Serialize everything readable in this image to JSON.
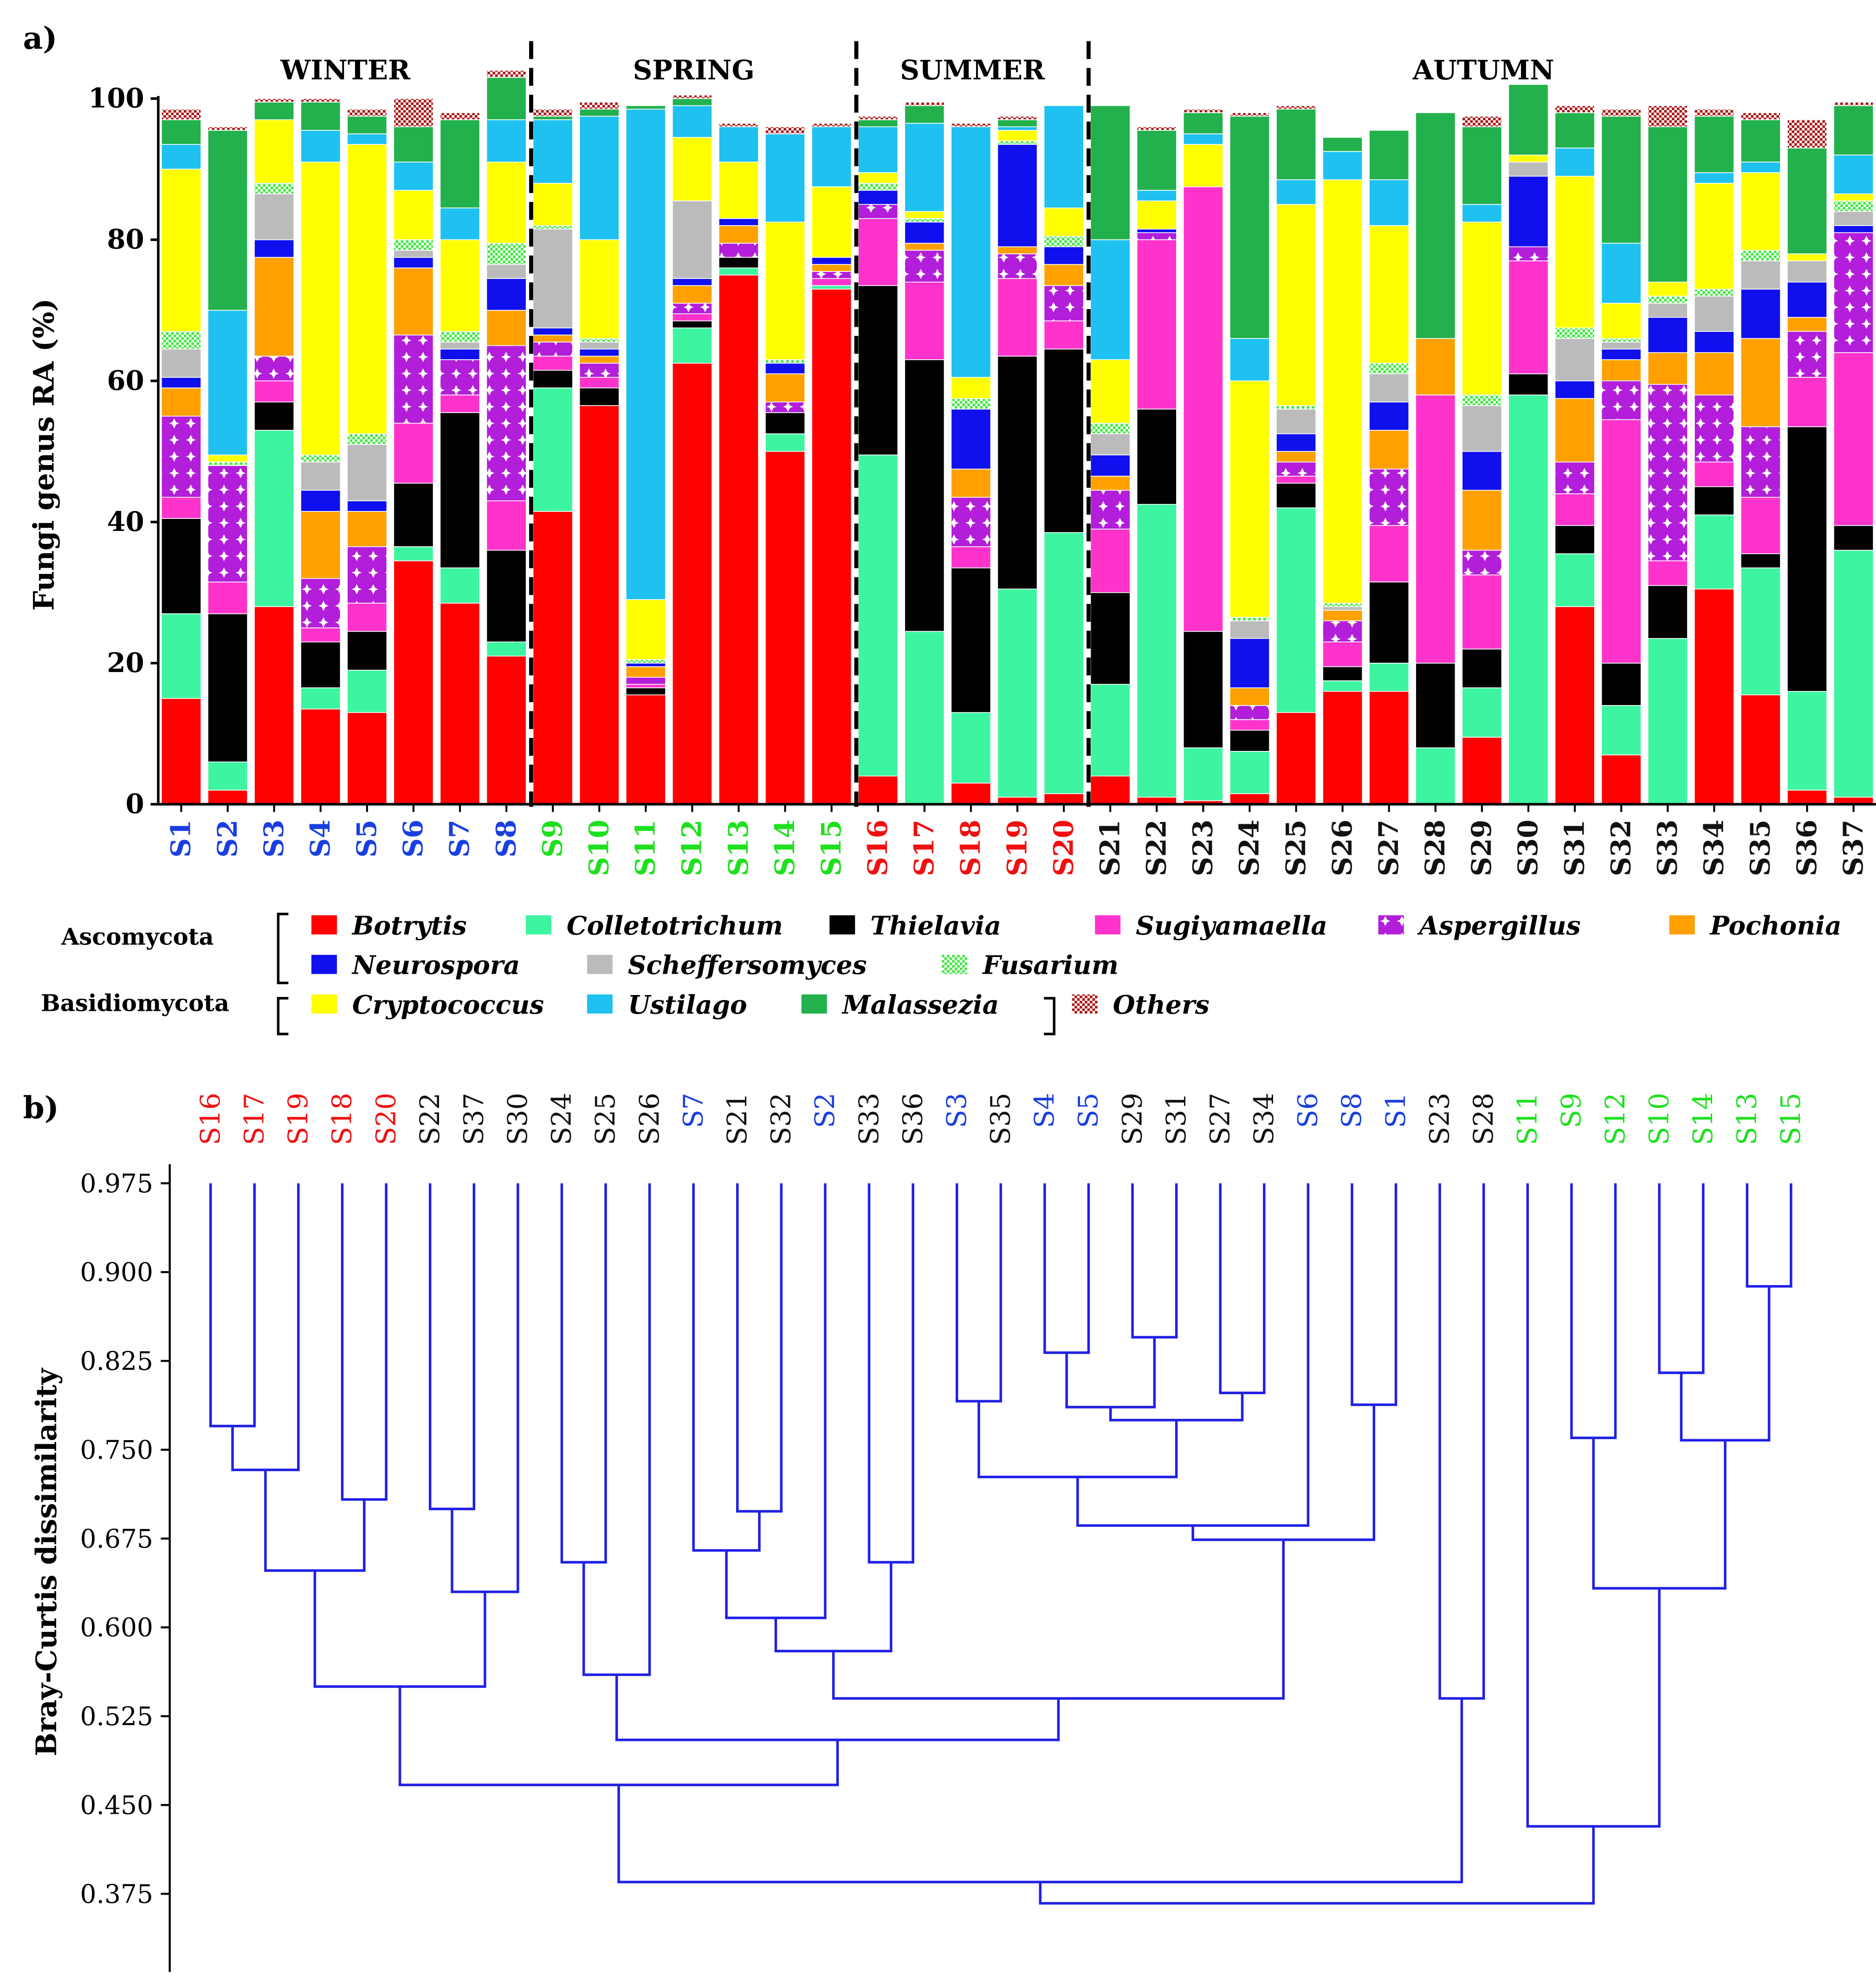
{
  "panel_a": {
    "label": "a)",
    "seasons": [
      {
        "name": "WINTER",
        "color": "#1a3fe0",
        "samples": [
          "S1",
          "S2",
          "S3",
          "S4",
          "S5",
          "S6",
          "S7",
          "S8"
        ]
      },
      {
        "name": "SPRING",
        "color": "#1ee01e",
        "samples": [
          "S9",
          "S10",
          "S11",
          "S12",
          "S13",
          "S14",
          "S15"
        ]
      },
      {
        "name": "SUMMER",
        "color": "#f01010",
        "samples": [
          "S16",
          "S17",
          "S18",
          "S19",
          "S20"
        ]
      },
      {
        "name": "AUTUMN",
        "color": "#111111",
        "samples": [
          "S21",
          "S22",
          "S23",
          "S24",
          "S25",
          "S26",
          "S27",
          "S28",
          "S29",
          "S30",
          "S31",
          "S32",
          "S33",
          "S34",
          "S35",
          "S36",
          "S37"
        ]
      }
    ],
    "legend_groups": {
      "ascomycota": "Ascomycota",
      "basidiomycota": "Basidiomycota"
    }
  },
  "panel_b": {
    "label": "b)"
  },
  "chart_data": [
    {
      "type": "bar",
      "stacked": true,
      "title": "",
      "ylabel": "Fungi genus RA (%)",
      "xlabel": "",
      "ylim": [
        0,
        100
      ],
      "yticks": [
        0,
        20,
        40,
        60,
        80,
        100
      ],
      "categories": [
        "S1",
        "S2",
        "S3",
        "S4",
        "S5",
        "S6",
        "S7",
        "S8",
        "S9",
        "S10",
        "S11",
        "S12",
        "S13",
        "S14",
        "S15",
        "S16",
        "S17",
        "S18",
        "S19",
        "S20",
        "S21",
        "S22",
        "S23",
        "S24",
        "S25",
        "S26",
        "S27",
        "S28",
        "S29",
        "S30",
        "S31",
        "S32",
        "S33",
        "S34",
        "S35",
        "S36",
        "S37"
      ],
      "series": [
        {
          "name": "Botrytis",
          "phylum": "Ascomycota",
          "color": "#ff0000",
          "pattern": "solid",
          "values": [
            15,
            2,
            28,
            13.5,
            13,
            34.5,
            28.5,
            21,
            41.5,
            56.5,
            15.5,
            62.5,
            75,
            50,
            73,
            4,
            0,
            3,
            1,
            1.5,
            4,
            1,
            0.5,
            1.5,
            13,
            16,
            16,
            0,
            9.5,
            0,
            28,
            7,
            0,
            30.5,
            15.5,
            2,
            1
          ]
        },
        {
          "name": "Colletotrichum",
          "phylum": "Ascomycota",
          "color": "#3df5a0",
          "pattern": "solid",
          "values": [
            12,
            4,
            25,
            3,
            6,
            2,
            5,
            2,
            17.5,
            0,
            0,
            5,
            1,
            2.5,
            0.5,
            45.5,
            24.5,
            10,
            29.5,
            37,
            13,
            41.5,
            7.5,
            6,
            29,
            1.5,
            4,
            8,
            7,
            58,
            7.5,
            7,
            23.5,
            10.5,
            18,
            14,
            35
          ]
        },
        {
          "name": "Thielavia",
          "phylum": "Ascomycota",
          "color": "#000000",
          "pattern": "solid",
          "values": [
            13.5,
            21,
            4,
            6.5,
            5.5,
            9,
            22,
            13,
            2.5,
            2.5,
            1,
            1,
            1.5,
            3,
            0,
            24,
            38.5,
            20.5,
            33,
            26,
            13,
            13.5,
            16.5,
            3,
            3.5,
            2,
            11.5,
            12,
            5.5,
            3,
            4,
            6,
            7.5,
            4,
            2,
            37.5,
            3.5
          ]
        },
        {
          "name": "Sugiyamaella",
          "phylum": "Ascomycota",
          "color": "#ff33cc",
          "pattern": "solid",
          "values": [
            3,
            4.5,
            3,
            2,
            4,
            8.5,
            2.5,
            7,
            2,
            1.5,
            0.5,
            1,
            0,
            0,
            1,
            9.5,
            11,
            3,
            11,
            4,
            9,
            24,
            63,
            1.5,
            1,
            3.5,
            8,
            38,
            10.5,
            16,
            4.5,
            34.5,
            3.5,
            3.5,
            8,
            7,
            24.5
          ]
        },
        {
          "name": "Aspergillus",
          "phylum": "Ascomycota",
          "color": "#b21ed9",
          "pattern": "cross",
          "values": [
            11.5,
            16.5,
            3.5,
            7,
            8,
            12.5,
            5,
            22,
            2,
            2,
            1,
            1.5,
            2,
            1.5,
            1,
            2,
            4.5,
            7,
            3.5,
            5,
            5.5,
            1,
            0,
            2,
            2,
            3,
            8,
            0,
            3.5,
            2,
            4.5,
            5.5,
            25,
            9.5,
            10,
            6.5,
            17
          ]
        },
        {
          "name": "Pochonia",
          "phylum": "Ascomycota",
          "color": "#ffa000",
          "pattern": "solid",
          "values": [
            4,
            0,
            14,
            9.5,
            5,
            9.5,
            0,
            5,
            1,
            1,
            1.5,
            2.5,
            2.5,
            4,
            1,
            0,
            1,
            4,
            1,
            3,
            2,
            0,
            0,
            2.5,
            1.5,
            1.5,
            5.5,
            8,
            8.5,
            0,
            9,
            3,
            4.5,
            6,
            12.5,
            2,
            0
          ]
        },
        {
          "name": "Neurospora",
          "phylum": "Ascomycota",
          "color": "#1010ee",
          "pattern": "solid",
          "values": [
            1.5,
            0,
            2.5,
            3,
            1.5,
            1.5,
            1.5,
            4.5,
            1,
            1,
            0.5,
            1,
            1,
            1.5,
            1,
            2,
            3,
            8.5,
            14.5,
            2.5,
            3,
            0.5,
            0,
            7,
            2.5,
            0,
            4,
            0,
            5.5,
            10,
            2.5,
            1.5,
            5,
            3,
            7,
            5,
            1
          ]
        },
        {
          "name": "Scheffersomyces",
          "phylum": "Ascomycota",
          "color": "#bbbbbb",
          "pattern": "solid",
          "values": [
            4,
            0,
            6.5,
            4,
            8,
            1,
            1,
            2,
            14,
            1,
            0,
            11,
            0,
            0,
            0,
            0,
            0,
            0,
            0,
            0,
            3,
            0,
            0,
            2.5,
            3.5,
            0.5,
            4,
            0,
            6.5,
            2,
            6,
            1,
            2,
            5,
            4,
            3,
            2
          ]
        },
        {
          "name": "Fusarium",
          "phylum": "Ascomycota",
          "color": "#3ee83e",
          "pattern": "dots",
          "values": [
            2.5,
            0.5,
            1.5,
            1,
            1.5,
            1.5,
            1.5,
            3,
            0.5,
            0.5,
            0.5,
            0,
            0,
            0.5,
            0,
            1,
            0.5,
            1.5,
            0.5,
            1.5,
            1.5,
            0,
            0,
            0.5,
            0.5,
            0.5,
            1.5,
            0,
            1.5,
            0,
            1.5,
            0.5,
            1,
            1,
            1.5,
            0,
            1.5
          ]
        },
        {
          "name": "Cryptococcus",
          "phylum": "Basidiomycota",
          "color": "#ffff00",
          "pattern": "solid",
          "values": [
            23,
            1,
            9,
            41.5,
            41,
            7,
            13,
            11.5,
            6,
            14,
            8.5,
            9,
            8,
            19.5,
            10,
            1.5,
            1,
            3,
            1.5,
            4,
            9,
            4,
            6,
            33.5,
            28.5,
            60,
            19.5,
            0,
            24.5,
            1,
            21.5,
            5,
            2,
            15,
            11,
            1,
            1
          ]
        },
        {
          "name": "Ustilago",
          "phylum": "Basidiomycota",
          "color": "#1ec1f0",
          "pattern": "solid",
          "values": [
            3.5,
            20.5,
            0,
            4.5,
            1.5,
            4,
            4.5,
            6,
            9,
            17.5,
            69.5,
            4.5,
            5,
            12.5,
            8.5,
            6.5,
            12.5,
            35.5,
            0.5,
            14.5,
            17,
            1.5,
            1.5,
            6,
            3.5,
            4,
            6.5,
            0,
            2.5,
            0,
            4,
            8.5,
            0,
            1.5,
            1.5,
            0,
            5.5
          ]
        },
        {
          "name": "Malassezia",
          "phylum": "Basidiomycota",
          "color": "#22b14c",
          "pattern": "solid",
          "values": [
            3.5,
            25.5,
            2.5,
            4,
            2.5,
            5,
            12.5,
            6,
            0.5,
            1,
            0.5,
            1,
            0,
            0,
            0,
            1,
            2.5,
            0,
            1,
            0,
            19,
            8.5,
            3,
            31.5,
            10,
            2,
            7,
            32,
            11,
            10,
            5,
            18,
            22,
            8,
            6,
            15,
            7
          ]
        },
        {
          "name": "Others",
          "phylum": "",
          "color": "#aa1010",
          "pattern": "checker",
          "values": [
            1.5,
            0.5,
            0.5,
            0.5,
            1,
            4,
            1,
            1,
            1,
            1,
            0,
            0.5,
            0.5,
            1,
            0.5,
            0.5,
            0.5,
            0.5,
            0.5,
            0,
            0,
            0.5,
            0.5,
            0.5,
            0.5,
            0,
            0,
            0,
            1.5,
            0,
            1,
            1,
            3,
            1,
            1,
            4,
            0.5
          ]
        }
      ]
    },
    {
      "type": "dendrogram",
      "title": "",
      "ylabel": "Bray-Curtis dissimilarity",
      "yticks": [
        0.975,
        0.9,
        0.825,
        0.75,
        0.675,
        0.6,
        0.525,
        0.45,
        0.375
      ],
      "yaxis": "inverted (similarity increases upward; merges drawn at dissimilarity height)",
      "leaves": [
        "S16",
        "S17",
        "S19",
        "S18",
        "S20",
        "S22",
        "S37",
        "S30",
        "S24",
        "S25",
        "S26",
        "S7",
        "S21",
        "S32",
        "S2",
        "S33",
        "S36",
        "S3",
        "S35",
        "S4",
        "S5",
        "S29",
        "S31",
        "S27",
        "S34",
        "S6",
        "S8",
        "S1",
        "S23",
        "S28",
        "S11",
        "S9",
        "S12",
        "S10",
        "S14",
        "S13",
        "S15"
      ],
      "merges": [
        {
          "a": "S16",
          "b": "S17",
          "height": 0.77
        },
        {
          "a": "S16+S17",
          "b": "S19",
          "height": 0.733
        },
        {
          "a": "S18",
          "b": "S20",
          "height": 0.708
        },
        {
          "a": "S16+S17+S19",
          "b": "S18+S20",
          "height": 0.648
        },
        {
          "a": "S22",
          "b": "S37",
          "height": 0.7
        },
        {
          "a": "S22+S37",
          "b": "S30",
          "height": 0.63
        },
        {
          "a": "SUMMER",
          "b": "S22+S37+S30",
          "height": 0.55
        },
        {
          "a": "S24",
          "b": "S25",
          "height": 0.655
        },
        {
          "a": "S24+S25",
          "b": "S26",
          "height": 0.56
        },
        {
          "a": "S21",
          "b": "S32",
          "height": 0.698
        },
        {
          "a": "S7",
          "b": "S21+S32",
          "height": 0.665
        },
        {
          "a": "S7+S21+S32",
          "b": "S2",
          "height": 0.608
        },
        {
          "a": "S33",
          "b": "S36",
          "height": 0.655
        },
        {
          "a": "S7+S21+S32+S2",
          "b": "S33+S36",
          "height": 0.58
        },
        {
          "a": "S4",
          "b": "S5",
          "height": 0.832
        },
        {
          "a": "S29",
          "b": "S31",
          "height": 0.845
        },
        {
          "a": "S4+S5",
          "b": "S29+S31",
          "height": 0.786
        },
        {
          "a": "S27",
          "b": "S34",
          "height": 0.798
        },
        {
          "a": "S4+S5+S29+S31",
          "b": "S27+S34",
          "height": 0.775
        },
        {
          "a": "S3",
          "b": "S35",
          "height": 0.791
        },
        {
          "a": "S3+S35",
          "b": "S4..S34",
          "height": 0.727
        },
        {
          "a": "S3..S34",
          "b": "S6",
          "height": 0.686
        },
        {
          "a": "S8",
          "b": "S1",
          "height": 0.788
        },
        {
          "a": "S3..S6",
          "b": "S8+S1",
          "height": 0.674
        },
        {
          "a": "S7..S36",
          "b": "S3..S1",
          "height": 0.54
        },
        {
          "a": "S24+S25+S26",
          "b": "S7..S1",
          "height": 0.505
        },
        {
          "a": "S16..S30",
          "b": "S24..S1",
          "height": 0.467
        },
        {
          "a": "S23",
          "b": "S28",
          "height": 0.54
        },
        {
          "a": "S16..S1",
          "b": "S23+S28",
          "height": 0.385
        },
        {
          "a": "S9",
          "b": "S12",
          "height": 0.76
        },
        {
          "a": "S10",
          "b": "S14",
          "height": 0.815
        },
        {
          "a": "S13",
          "b": "S15",
          "height": 0.888
        },
        {
          "a": "S10+S14",
          "b": "S13+S15",
          "height": 0.758
        },
        {
          "a": "S9+S12",
          "b": "S10+S14+S13+S15",
          "height": 0.633
        },
        {
          "a": "S11",
          "b": "S9..S15",
          "height": 0.432
        },
        {
          "a": "S16..S28",
          "b": "S11..S15",
          "height": 0.367
        }
      ]
    }
  ]
}
